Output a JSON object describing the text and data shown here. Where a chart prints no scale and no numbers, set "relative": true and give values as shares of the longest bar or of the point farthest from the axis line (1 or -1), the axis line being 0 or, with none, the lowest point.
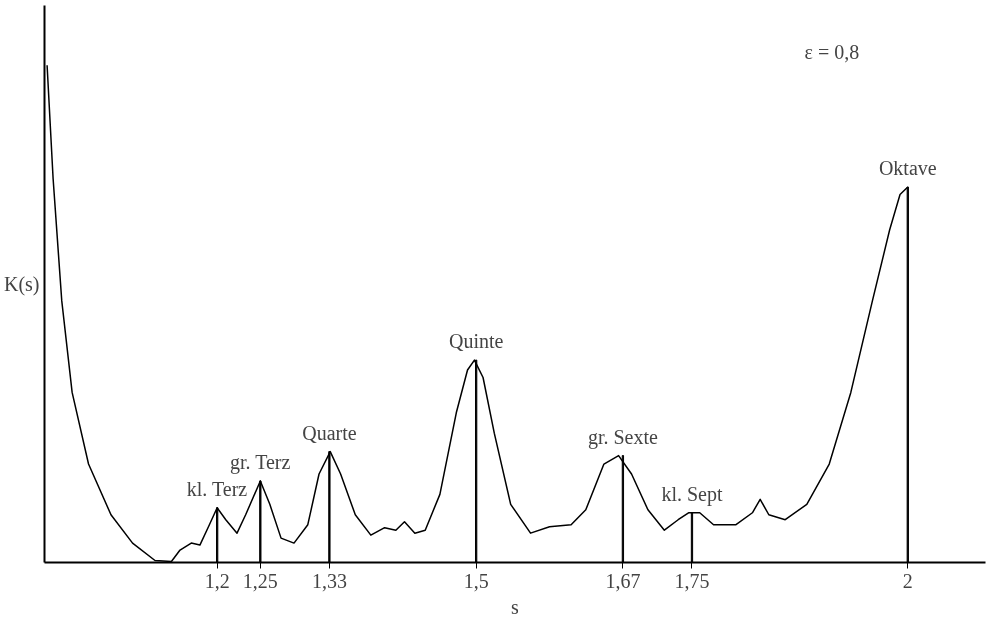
{
  "chart_data": {
    "type": "line",
    "relative": true,
    "xlabel": "s",
    "ylabel": "K(s)",
    "tick_labels": "x",
    "grid": false,
    "marker": "none",
    "line_style": "solid",
    "xlim": [
      1,
      2.09
    ],
    "xticks": [
      {
        "value": 1.2,
        "label": "1,2"
      },
      {
        "value": 1.25,
        "label": "1,25"
      },
      {
        "value": 1.33,
        "label": "1,33"
      },
      {
        "value": 1.5,
        "label": "1,5"
      },
      {
        "value": 1.67,
        "label": "1,67"
      },
      {
        "value": 1.75,
        "label": "1,75"
      },
      {
        "value": 2,
        "label": "2"
      }
    ],
    "annotations": [
      "ε = 0,8",
      {
        "text": "kl. Terz",
        "x": 1.2,
        "y": 0.11
      },
      {
        "text": "gr. Terz",
        "x": 1.25,
        "y": 0.164
      },
      {
        "text": "Quarte",
        "x": 1.33,
        "y": 0.223
      },
      {
        "text": "Quinte",
        "x": 1.5,
        "y": 0.407
      },
      {
        "text": "gr. Sexte",
        "x": 1.67,
        "y": 0.215
      },
      {
        "text": "kl. Sept",
        "x": 1.75,
        "y": 0.1
      },
      {
        "text": "Oktave",
        "x": 2,
        "y": 0.755
      }
    ],
    "series": [
      {
        "color": "#000000",
        "x": [
          1.003,
          1.01,
          1.02,
          1.032,
          1.051,
          1.077,
          1.102,
          1.128,
          1.147,
          1.157,
          1.17,
          1.18,
          1.191,
          1.2,
          1.21,
          1.223,
          1.233,
          1.25,
          1.261,
          1.274,
          1.289,
          1.305,
          1.318,
          1.331,
          1.343,
          1.36,
          1.378,
          1.394,
          1.407,
          1.417,
          1.429,
          1.441,
          1.458,
          1.477,
          1.49,
          1.498,
          1.508,
          1.521,
          1.54,
          1.563,
          1.585,
          1.61,
          1.627,
          1.648,
          1.665,
          1.68,
          1.699,
          1.718,
          1.734,
          1.746,
          1.759,
          1.775,
          1.801,
          1.82,
          1.829,
          1.839,
          1.858,
          1.883,
          1.909,
          1.934,
          1.959,
          1.979,
          1.991,
          2.0
        ],
        "values": [
          1.0,
          0.771,
          0.526,
          0.342,
          0.198,
          0.096,
          0.039,
          0.004,
          0.002,
          0.025,
          0.039,
          0.035,
          0.076,
          0.11,
          0.086,
          0.059,
          0.096,
          0.164,
          0.117,
          0.049,
          0.039,
          0.076,
          0.178,
          0.223,
          0.178,
          0.096,
          0.055,
          0.07,
          0.065,
          0.082,
          0.059,
          0.065,
          0.137,
          0.301,
          0.387,
          0.407,
          0.372,
          0.26,
          0.117,
          0.059,
          0.072,
          0.076,
          0.106,
          0.198,
          0.215,
          0.178,
          0.106,
          0.065,
          0.086,
          0.1,
          0.1,
          0.076,
          0.076,
          0.1,
          0.127,
          0.096,
          0.086,
          0.117,
          0.198,
          0.342,
          0.526,
          0.669,
          0.74,
          0.755
        ]
      },
      {
        "type": "bar",
        "color": "#000000",
        "x": [
          1.2,
          1.25,
          1.33,
          1.5,
          1.67,
          1.75,
          2
        ],
        "values": [
          0.11,
          0.164,
          0.223,
          0.407,
          0.215,
          0.1,
          0.755
        ]
      }
    ]
  }
}
